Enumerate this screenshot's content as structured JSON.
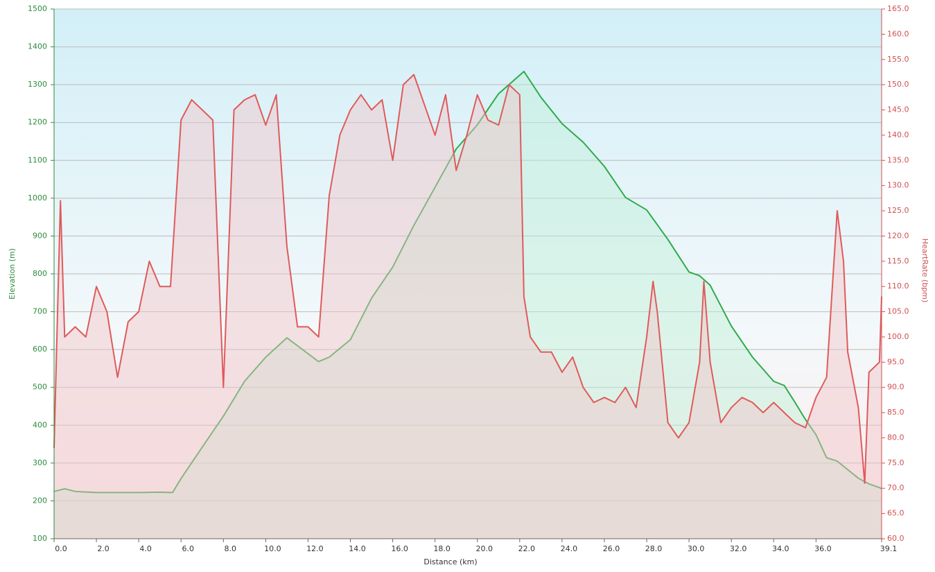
{
  "chart_data": {
    "type": "line",
    "xlabel": "Distance  (km)",
    "ylabel": "Elevation (m)",
    "y2label": "HeartRate (bpm)",
    "xlim": [
      0,
      39.1
    ],
    "xticks": [
      {
        "value": 0,
        "label": "0.0"
      },
      {
        "value": 2,
        "label": "2.0"
      },
      {
        "value": 4,
        "label": "4.0"
      },
      {
        "value": 6,
        "label": "6.0"
      },
      {
        "value": 8,
        "label": "8.0"
      },
      {
        "value": 10,
        "label": "10.0"
      },
      {
        "value": 12,
        "label": "12.0"
      },
      {
        "value": 14,
        "label": "14.0"
      },
      {
        "value": 16,
        "label": "16.0"
      },
      {
        "value": 18,
        "label": "18.0"
      },
      {
        "value": 20,
        "label": "20.0"
      },
      {
        "value": 22,
        "label": "22.0"
      },
      {
        "value": 24,
        "label": "24.0"
      },
      {
        "value": 26,
        "label": "26.0"
      },
      {
        "value": 28,
        "label": "28.0"
      },
      {
        "value": 30,
        "label": "30.0"
      },
      {
        "value": 32,
        "label": "32.0"
      },
      {
        "value": 34,
        "label": "34.0"
      },
      {
        "value": 36,
        "label": "36.0"
      },
      {
        "value": 39.1,
        "label": "39.1"
      }
    ],
    "ylim": [
      100,
      1500
    ],
    "yticks": [
      100,
      200,
      300,
      400,
      500,
      600,
      700,
      800,
      900,
      1000,
      1100,
      1200,
      1300,
      1400,
      1500
    ],
    "y2lim": [
      60,
      165
    ],
    "y2ticks": [
      {
        "value": 60,
        "label": "60.0"
      },
      {
        "value": 65,
        "label": "65.0"
      },
      {
        "value": 70,
        "label": "70.0"
      },
      {
        "value": 75,
        "label": "75.0"
      },
      {
        "value": 80,
        "label": "80.0"
      },
      {
        "value": 85,
        "label": "85.0"
      },
      {
        "value": 90,
        "label": "90.0"
      },
      {
        "value": 95,
        "label": "95.0"
      },
      {
        "value": 100,
        "label": "100.0"
      },
      {
        "value": 105,
        "label": "105.0"
      },
      {
        "value": 110,
        "label": "110.0"
      },
      {
        "value": 115,
        "label": "115.0"
      },
      {
        "value": 120,
        "label": "120.0"
      },
      {
        "value": 125,
        "label": "125.0"
      },
      {
        "value": 130,
        "label": "130.0"
      },
      {
        "value": 135,
        "label": "135.0"
      },
      {
        "value": 140,
        "label": "140.0"
      },
      {
        "value": 145,
        "label": "145.0"
      },
      {
        "value": 150,
        "label": "150.0"
      },
      {
        "value": 155,
        "label": "155.0"
      },
      {
        "value": 160,
        "label": "160.0"
      },
      {
        "value": 165,
        "label": "165.0"
      }
    ],
    "grid": true,
    "series": [
      {
        "color": "#2eaa4a",
        "fill": "#bff0d8",
        "x": [
          0,
          0.5,
          1,
          2,
          3,
          4,
          5,
          5.6,
          6,
          7,
          8,
          9,
          10,
          11,
          12,
          12.5,
          13,
          14,
          15,
          16,
          17,
          18,
          19,
          20,
          21,
          22,
          22.2,
          23,
          24,
          25,
          26,
          27,
          28,
          29,
          30,
          30.5,
          31,
          32,
          33,
          34,
          34.5,
          35,
          35.5,
          36,
          36.5,
          37,
          38,
          38.5,
          39,
          39.1
        ],
        "values": [
          225,
          232,
          225,
          222,
          222,
          222,
          223,
          222,
          259,
          342,
          424,
          516,
          580,
          631,
          589,
          568,
          580,
          626,
          736,
          818,
          928,
          1029,
          1130,
          1194,
          1276,
          1325,
          1335,
          1267,
          1197,
          1148,
          1084,
          1002,
          969,
          891,
          805,
          795,
          770,
          662,
          580,
          516,
          505,
          461,
          415,
          375,
          314,
          305,
          260,
          245,
          235,
          232
        ]
      },
      {
        "color": "#e05a5a",
        "fill": "#f2c4c8",
        "axis": "y2",
        "x": [
          0,
          0.3,
          0.5,
          1,
          1.5,
          2,
          2.5,
          3,
          3.5,
          4,
          4.5,
          5,
          5.5,
          6,
          6.5,
          7,
          7.5,
          8,
          8.5,
          9,
          9.5,
          10,
          10.5,
          11,
          11.5,
          12,
          12.5,
          13,
          13.5,
          14,
          14.5,
          15,
          15.5,
          16,
          16.5,
          17,
          17.5,
          18,
          18.5,
          19,
          19.5,
          20,
          20.5,
          21,
          21.5,
          22,
          22.2,
          22.5,
          23,
          23.5,
          24,
          24.5,
          25,
          25.5,
          26,
          26.5,
          27,
          27.5,
          28,
          28.3,
          28.5,
          29,
          29.5,
          30,
          30.5,
          30.7,
          31,
          31.5,
          32,
          32.5,
          33,
          33.5,
          34,
          34.5,
          35,
          35.5,
          36,
          36.5,
          37,
          37.3,
          37.5,
          38,
          38.3,
          38.5,
          39,
          39.1
        ],
        "values": [
          78,
          127,
          100,
          102,
          100,
          110,
          105,
          92,
          103,
          105,
          115,
          110,
          110,
          143,
          147,
          145,
          143,
          90,
          145,
          147,
          148,
          142,
          148,
          118,
          102,
          102,
          100,
          128,
          140,
          145,
          148,
          145,
          147,
          135,
          150,
          152,
          146,
          140,
          148,
          133,
          140,
          148,
          143,
          142,
          150,
          148,
          108,
          100,
          97,
          97,
          93,
          96,
          90,
          87,
          88,
          87,
          90,
          86,
          100,
          111,
          105,
          83,
          80,
          83,
          95,
          111,
          95,
          83,
          86,
          88,
          87,
          85,
          87,
          85,
          83,
          82,
          88,
          92,
          125,
          115,
          97,
          86,
          71,
          93,
          95,
          108
        ]
      }
    ]
  }
}
